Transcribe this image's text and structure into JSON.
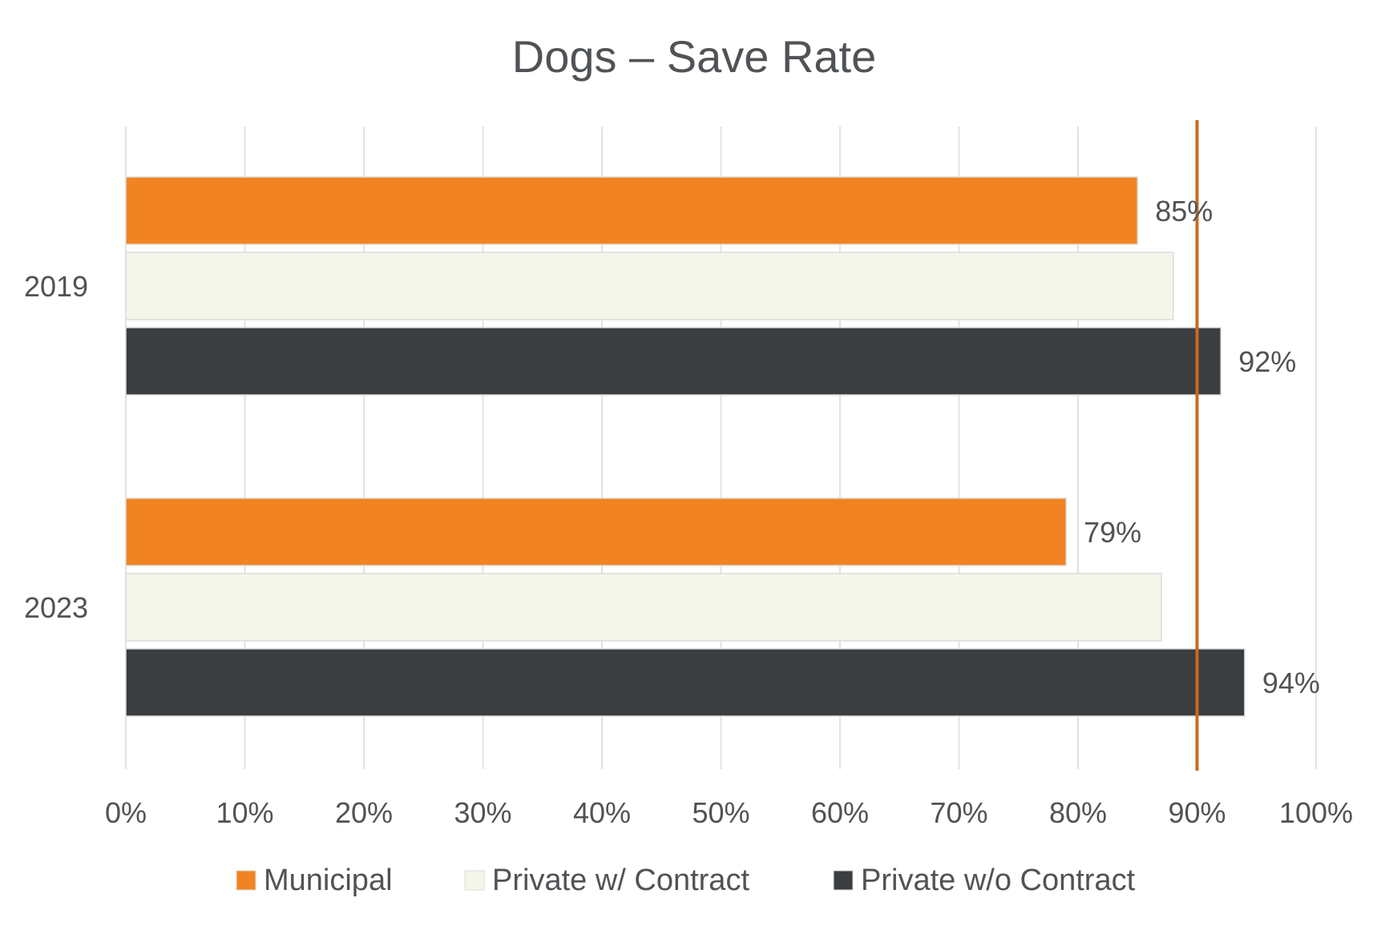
{
  "chart_data": {
    "type": "bar",
    "orientation": "horizontal",
    "title": "Dogs – Save Rate",
    "categories": [
      "2019",
      "2023"
    ],
    "series": [
      {
        "name": "Municipal",
        "color": "#f28322",
        "values": [
          85,
          79
        ],
        "labels": [
          "85%",
          "79%"
        ]
      },
      {
        "name": "Private w/ Contract",
        "color": "#f4f6ea",
        "values": [
          88,
          87
        ],
        "labels": [
          "",
          ""
        ]
      },
      {
        "name": "Private w/o Contract",
        "color": "#3a3e41",
        "values": [
          92,
          94
        ],
        "labels": [
          "92%",
          "94%"
        ]
      }
    ],
    "xlim": [
      0,
      100
    ],
    "xticks": [
      "0%",
      "10%",
      "20%",
      "30%",
      "40%",
      "50%",
      "60%",
      "70%",
      "80%",
      "90%",
      "100%"
    ],
    "reference_line": {
      "value": 90,
      "color": "#c8691f"
    },
    "grid": true,
    "legend": "bottom"
  }
}
